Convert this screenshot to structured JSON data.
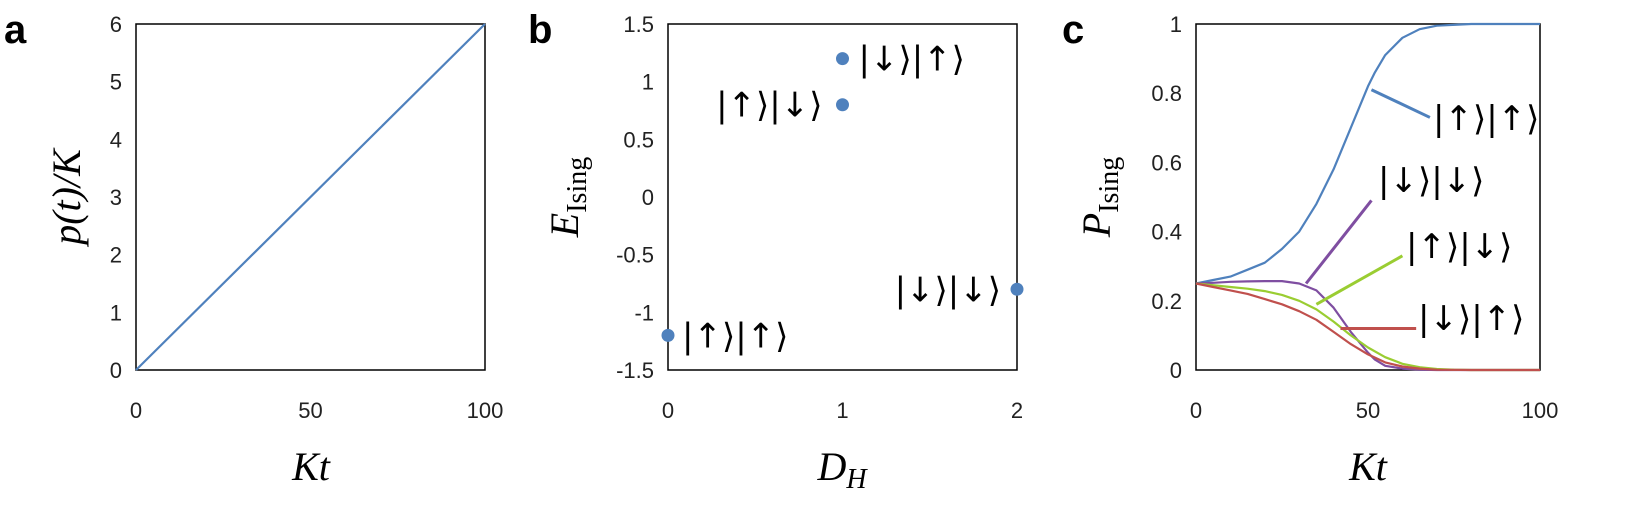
{
  "chart_data": [
    {
      "panel": "a",
      "type": "line",
      "xlabel": "Kt",
      "ylabel": "p(t)/K",
      "xlim": [
        0,
        100
      ],
      "ylim": [
        0,
        6
      ],
      "xticks": [
        0,
        50,
        100
      ],
      "yticks": [
        0,
        1,
        2,
        3,
        4,
        5,
        6
      ],
      "grid": false,
      "series": [
        {
          "color": "#4f81bd",
          "x": [
            0,
            100
          ],
          "y": [
            0,
            6
          ]
        }
      ]
    },
    {
      "panel": "b",
      "type": "scatter",
      "xlabel": "D_H",
      "ylabel": "E_Ising",
      "xlim": [
        0,
        2
      ],
      "ylim": [
        -1.5,
        1.5
      ],
      "xticks": [
        0,
        1,
        2
      ],
      "yticks": [
        -1.5,
        -1,
        -0.5,
        0,
        0.5,
        1,
        1.5
      ],
      "grid": false,
      "points": [
        {
          "x": 0,
          "y": -1.2,
          "label": "|↑⟩|↑⟩"
        },
        {
          "x": 1,
          "y": 0.8,
          "label": "|↑⟩|↓⟩"
        },
        {
          "x": 1,
          "y": 1.2,
          "label": "|↓⟩|↑⟩"
        },
        {
          "x": 2,
          "y": -0.8,
          "label": "|↓⟩|↓⟩"
        }
      ],
      "color": "#4f81bd"
    },
    {
      "panel": "c",
      "type": "line",
      "xlabel": "Kt",
      "ylabel": "P_Ising",
      "xlim": [
        0,
        100
      ],
      "ylim": [
        0,
        1
      ],
      "xticks": [
        0,
        50,
        100
      ],
      "yticks": [
        0,
        0.2,
        0.4,
        0.6,
        0.8,
        1
      ],
      "grid": false,
      "series": [
        {
          "label": "|↑⟩|↑⟩",
          "color": "#4f81bd",
          "x": [
            0,
            5,
            10,
            15,
            20,
            25,
            30,
            35,
            40,
            45,
            50,
            52,
            55,
            60,
            65,
            70,
            80,
            90,
            100
          ],
          "y": [
            0.25,
            0.26,
            0.27,
            0.29,
            0.31,
            0.35,
            0.4,
            0.48,
            0.58,
            0.7,
            0.82,
            0.86,
            0.91,
            0.96,
            0.985,
            0.995,
            1.0,
            1.0,
            1.0
          ]
        },
        {
          "label": "|↓⟩|↓⟩",
          "color": "#7f4ea1",
          "x": [
            0,
            5,
            10,
            15,
            20,
            25,
            30,
            35,
            40,
            45,
            50,
            52,
            55,
            60,
            65,
            70,
            80,
            90,
            100
          ],
          "y": [
            0.25,
            0.252,
            0.255,
            0.256,
            0.257,
            0.257,
            0.25,
            0.23,
            0.18,
            0.11,
            0.05,
            0.03,
            0.012,
            0.004,
            0.001,
            0.0,
            0.0,
            0.0,
            0.0
          ]
        },
        {
          "label": "|↑⟩|↓⟩",
          "color": "#9acd32",
          "x": [
            0,
            5,
            10,
            15,
            20,
            25,
            30,
            35,
            40,
            45,
            50,
            55,
            60,
            65,
            70,
            75,
            80,
            90,
            100
          ],
          "y": [
            0.25,
            0.245,
            0.24,
            0.235,
            0.228,
            0.217,
            0.2,
            0.175,
            0.14,
            0.1,
            0.065,
            0.037,
            0.018,
            0.008,
            0.003,
            0.001,
            0.0,
            0.0,
            0.0
          ]
        },
        {
          "label": "|↓⟩|↑⟩",
          "color": "#c0504d",
          "x": [
            0,
            5,
            10,
            15,
            20,
            25,
            30,
            35,
            40,
            45,
            50,
            55,
            60,
            65,
            70,
            80,
            90,
            100
          ],
          "y": [
            0.25,
            0.24,
            0.23,
            0.22,
            0.205,
            0.19,
            0.17,
            0.145,
            0.11,
            0.075,
            0.045,
            0.022,
            0.01,
            0.004,
            0.001,
            0.0,
            0.0,
            0.0
          ]
        }
      ]
    }
  ]
}
